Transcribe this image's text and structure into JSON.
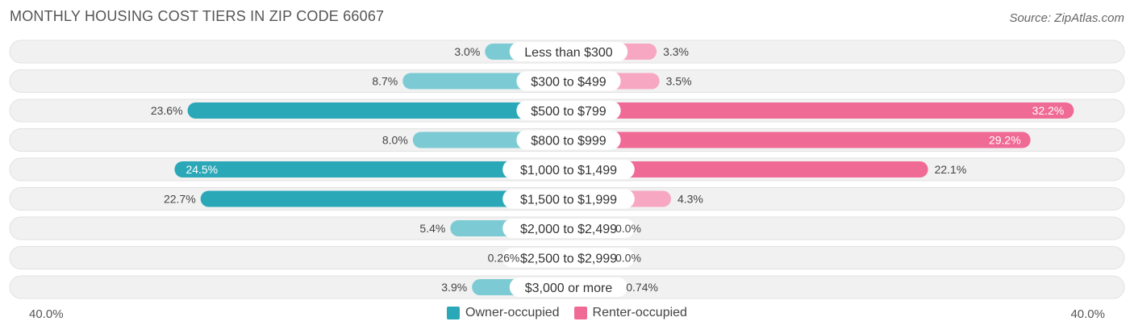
{
  "title": "MONTHLY HOUSING COST TIERS IN ZIP CODE 66067",
  "source": "Source: ZipAtlas.com",
  "colors": {
    "owner": "#2aa8b8",
    "owner_light": "#7ccbd4",
    "renter": "#f06a96",
    "renter_light": "#f7a7c2",
    "track": "#f1f1f1"
  },
  "legend": {
    "owner_label": "Owner-occupied",
    "renter_label": "Renter-occupied"
  },
  "axis": {
    "left_label": "40.0%",
    "right_label": "40.0%"
  },
  "chart_data": {
    "type": "bar",
    "orientation": "diverging-horizontal",
    "xlim": [
      -40,
      40
    ],
    "categories": [
      "Less than $300",
      "$300 to $499",
      "$500 to $799",
      "$800 to $999",
      "$1,000 to $1,499",
      "$1,500 to $1,999",
      "$2,000 to $2,499",
      "$2,500 to $2,999",
      "$3,000 or more"
    ],
    "series": [
      {
        "name": "Owner-occupied",
        "values": [
          3.0,
          8.7,
          23.6,
          8.0,
          24.5,
          22.7,
          5.4,
          0.26,
          3.9
        ],
        "labels": [
          "3.0%",
          "8.7%",
          "23.6%",
          "8.0%",
          "24.5%",
          "22.7%",
          "5.4%",
          "0.26%",
          "3.9%"
        ]
      },
      {
        "name": "Renter-occupied",
        "values": [
          3.3,
          3.5,
          32.2,
          29.2,
          22.1,
          4.3,
          0.0,
          0.0,
          0.74
        ],
        "labels": [
          "3.3%",
          "3.5%",
          "32.2%",
          "29.2%",
          "22.1%",
          "4.3%",
          "0.0%",
          "0.0%",
          "0.74%"
        ]
      }
    ]
  }
}
